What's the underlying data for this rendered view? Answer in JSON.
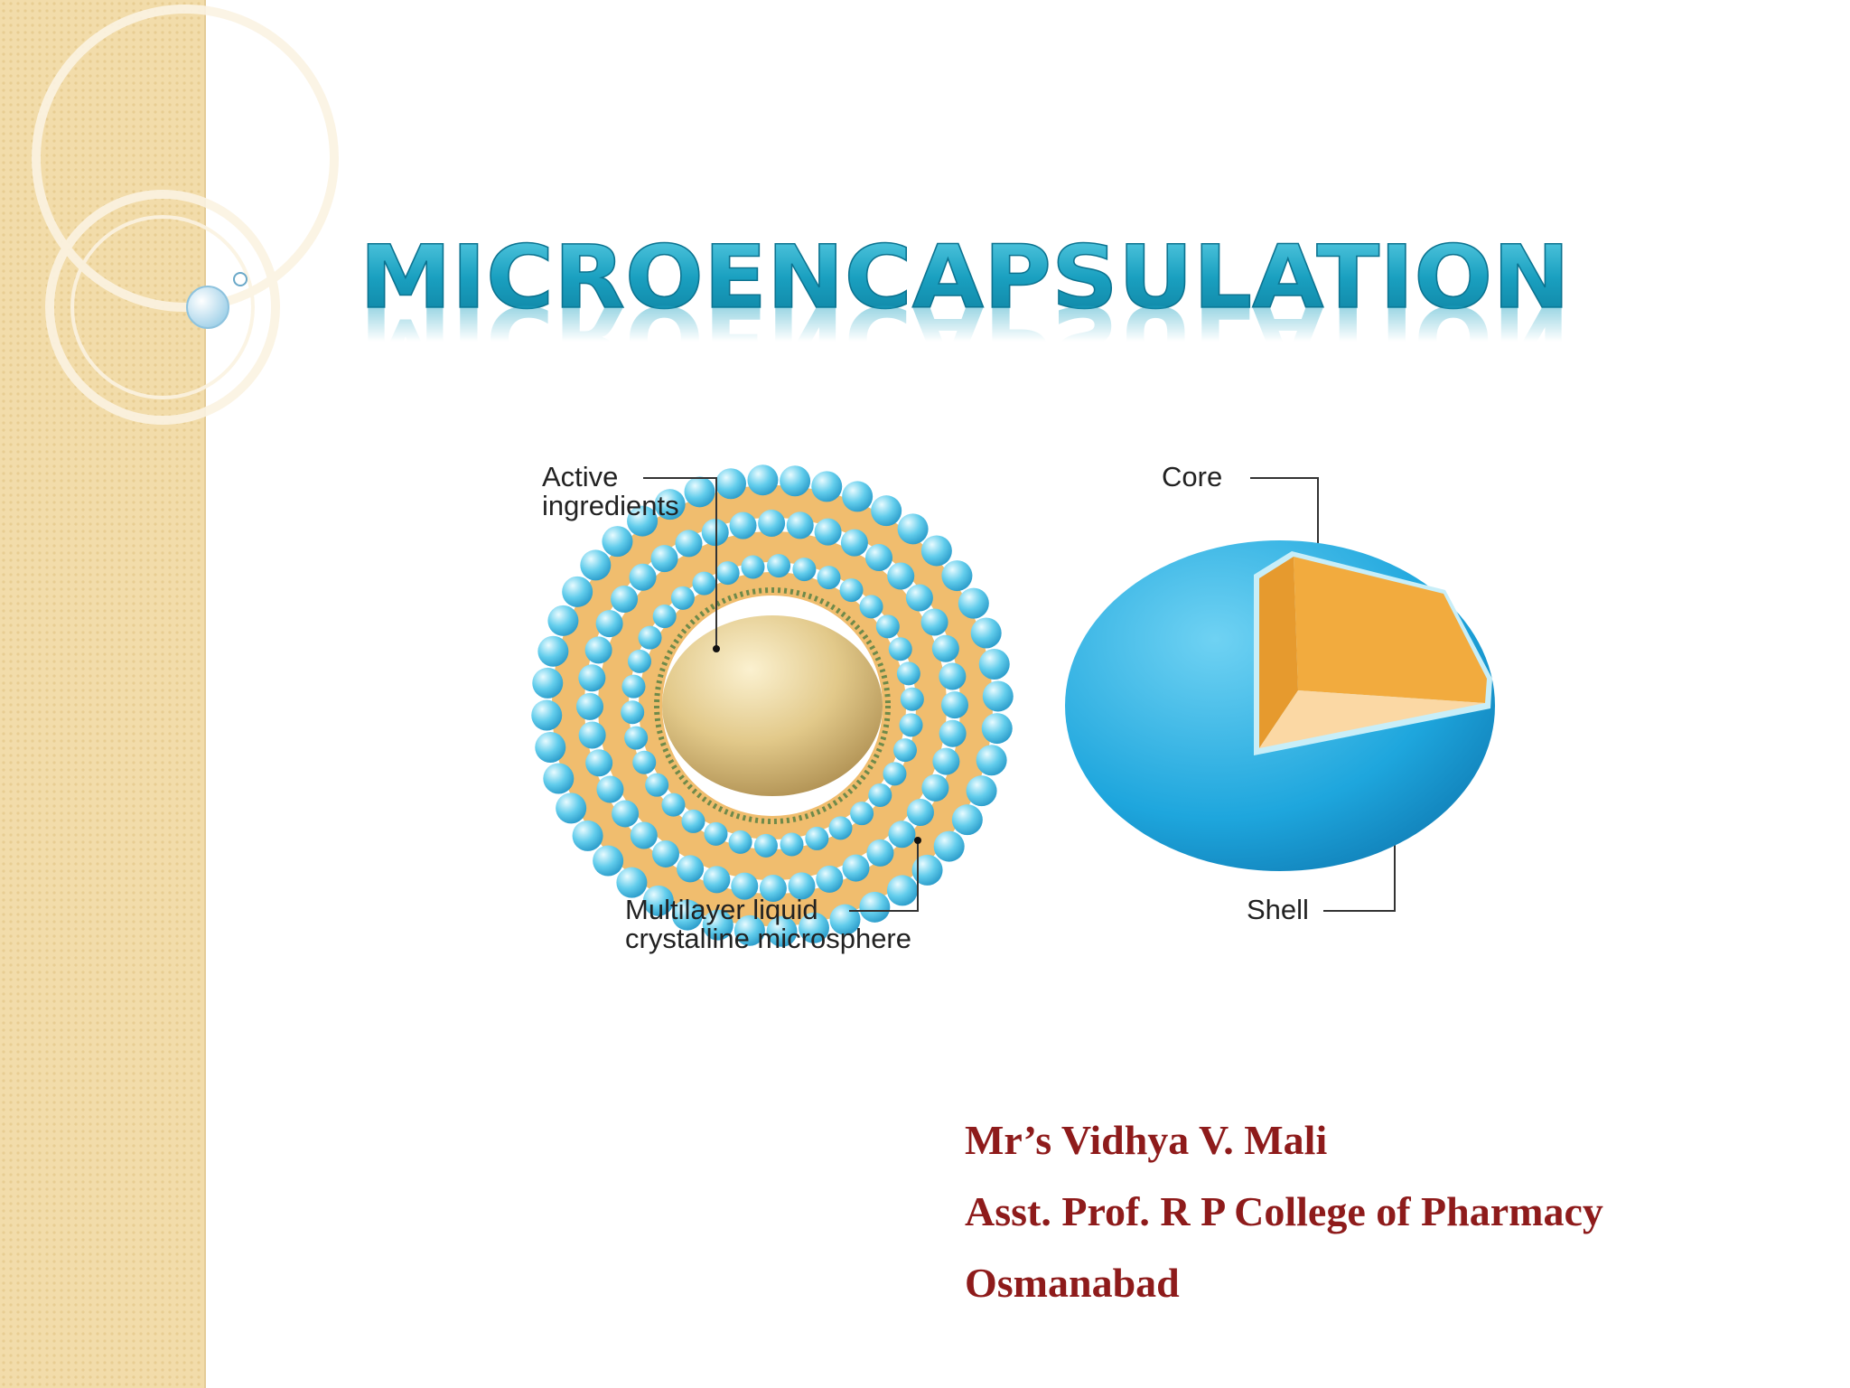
{
  "slide": {
    "title": "MICROENCAPSULATION",
    "left_diagram": {
      "top_label": [
        "Active",
        "ingredients"
      ],
      "bottom_label": [
        "Multilayer liquid",
        "crystalline microsphere"
      ]
    },
    "right_diagram": {
      "top_label": "Core",
      "bottom_label": "Shell"
    },
    "author": [
      "Mr’s Vidhya V. Mali",
      "Asst. Prof. R P College of Pharmacy",
      "Osmanabad"
    ]
  }
}
